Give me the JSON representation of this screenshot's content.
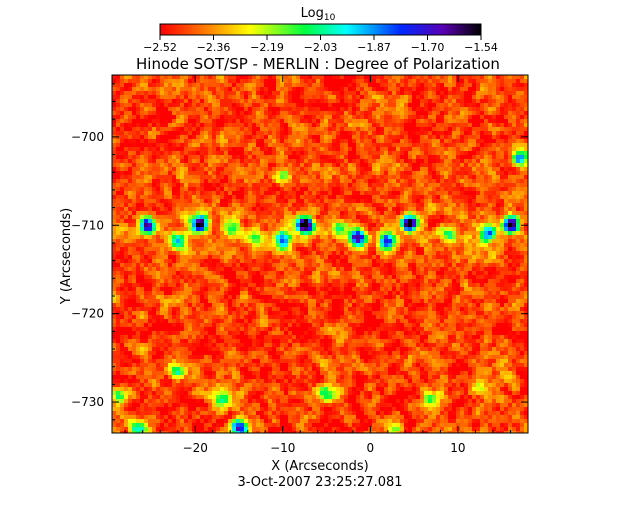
{
  "chart_data": {
    "type": "heatmap",
    "title": "Hinode SOT/SP - MERLIN : Degree of Polarization",
    "colorbar": {
      "label_main": "Log",
      "label_sub": "10",
      "ticks": [
        "-2.52",
        "-2.36",
        "-2.19",
        "-2.03",
        "-1.87",
        "-1.70",
        "-1.54"
      ],
      "range": [
        -2.52,
        -1.54
      ],
      "colormap": "rainbow (red-orange-yellow-green-cyan-blue-violet-black)",
      "position": "top"
    },
    "xlabel": "X (Arcseconds)",
    "ylabel": "Y (Arcseconds)",
    "xlim": [
      -29.5,
      18
    ],
    "ylim": [
      -733.5,
      -693
    ],
    "x_ticks": [
      {
        "value": -20,
        "label": "−20"
      },
      {
        "value": -10,
        "label": "−10"
      },
      {
        "value": 0,
        "label": "0"
      },
      {
        "value": 10,
        "label": "10"
      }
    ],
    "y_ticks": [
      {
        "value": -700,
        "label": "−700"
      },
      {
        "value": -710,
        "label": "−710"
      },
      {
        "value": -720,
        "label": "−720"
      },
      {
        "value": -730,
        "label": "−730"
      }
    ],
    "background_level": -2.45,
    "features": [
      {
        "x": -25.5,
        "y": -710.0,
        "strength": 0.75
      },
      {
        "x": -22.0,
        "y": -712.0,
        "strength": 0.55
      },
      {
        "x": -19.5,
        "y": -709.8,
        "strength": 1.0
      },
      {
        "x": -16.0,
        "y": -710.2,
        "strength": 0.45
      },
      {
        "x": -13.0,
        "y": -711.5,
        "strength": 0.4
      },
      {
        "x": -10.0,
        "y": -711.6,
        "strength": 0.75
      },
      {
        "x": -7.5,
        "y": -709.9,
        "strength": 1.0
      },
      {
        "x": -3.5,
        "y": -710.5,
        "strength": 0.45
      },
      {
        "x": -1.5,
        "y": -711.4,
        "strength": 0.85
      },
      {
        "x": 2.0,
        "y": -711.7,
        "strength": 0.7
      },
      {
        "x": 4.5,
        "y": -709.8,
        "strength": 1.0
      },
      {
        "x": 9.0,
        "y": -711.2,
        "strength": 0.4
      },
      {
        "x": 13.5,
        "y": -711.0,
        "strength": 0.55
      },
      {
        "x": 16.0,
        "y": -709.9,
        "strength": 1.0
      },
      {
        "x": 17.0,
        "y": -702.5,
        "strength": 0.6
      },
      {
        "x": -10.0,
        "y": -704.5,
        "strength": 0.35
      },
      {
        "x": -28.5,
        "y": -729.5,
        "strength": 0.5
      },
      {
        "x": -22.0,
        "y": -726.5,
        "strength": 0.45
      },
      {
        "x": -17.0,
        "y": -729.5,
        "strength": 0.5
      },
      {
        "x": -15.0,
        "y": -733.0,
        "strength": 0.8
      },
      {
        "x": -5.0,
        "y": -729.0,
        "strength": 0.45
      },
      {
        "x": 7.0,
        "y": -729.5,
        "strength": 0.45
      },
      {
        "x": 2.5,
        "y": -733.0,
        "strength": 0.35
      },
      {
        "x": -26.5,
        "y": -733.0,
        "strength": 0.5
      },
      {
        "x": 12.5,
        "y": -728.5,
        "strength": 0.3
      }
    ],
    "timestamp": "3-Oct-2007 23:25:27.081"
  }
}
